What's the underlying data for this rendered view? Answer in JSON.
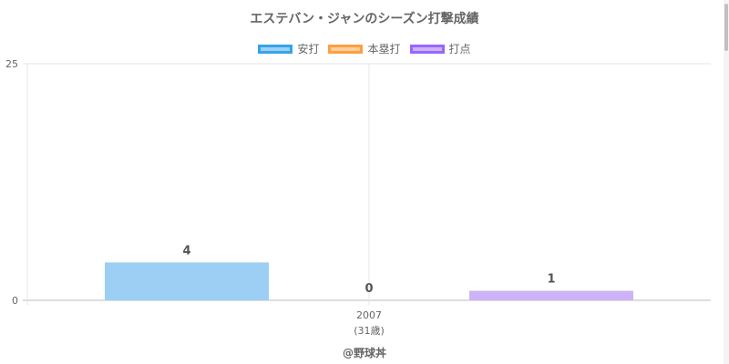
{
  "chart_data": {
    "type": "bar",
    "title": "エステバン・ジャンのシーズン打撃成績",
    "categories": [
      "2007"
    ],
    "category_sublabels": [
      "(31歳)"
    ],
    "series": [
      {
        "name": "安打",
        "values": [
          4
        ],
        "color": "#9ccff3",
        "border": "#36a2eb"
      },
      {
        "name": "本塁打",
        "values": [
          0
        ],
        "color": "#ffcf9f",
        "border": "#ff9f40"
      },
      {
        "name": "打点",
        "values": [
          1
        ],
        "color": "#ccb2f6",
        "border": "#9966ff"
      }
    ],
    "ylim": [
      0,
      25
    ],
    "yticks": [
      "0",
      "25"
    ],
    "grid": true,
    "legend_position": "top"
  },
  "footer": "@野球丼"
}
